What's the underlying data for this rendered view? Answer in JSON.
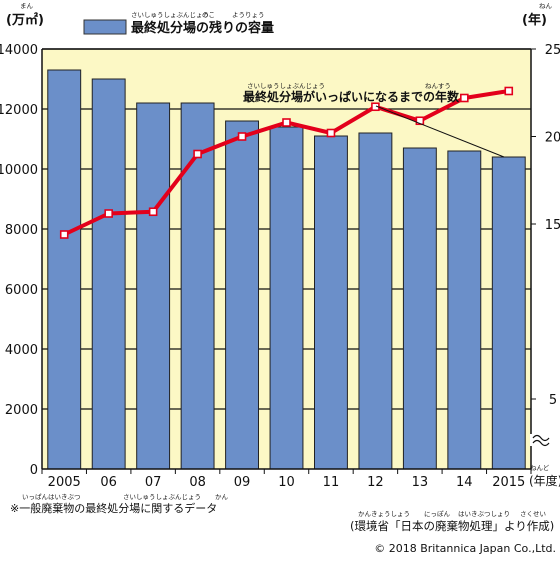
{
  "chart_data": {
    "type": "bar+line",
    "categories": [
      "2005",
      "06",
      "07",
      "08",
      "09",
      "10",
      "11",
      "12",
      "13",
      "14",
      "2015"
    ],
    "x_unit": "(年度)",
    "legend_label": "最終処分場の残りの容量",
    "legend_ruby": [
      "さいしゅうしょぶんじょう",
      "のこ",
      "ようりょう"
    ],
    "left_axis": {
      "unit": "(万㎡)",
      "unit_ruby": "まん",
      "ticks": [
        0,
        2000,
        4000,
        6000,
        8000,
        10000,
        12000,
        14000
      ],
      "ylim": [
        0,
        14000
      ]
    },
    "right_axis": {
      "unit": "(年)",
      "unit_ruby": "ねん",
      "ticks": [
        5,
        15,
        20,
        25
      ],
      "ylim": [
        1,
        25
      ],
      "axis_break": true
    },
    "series": [
      {
        "name": "最終処分場の残りの容量",
        "kind": "bar",
        "axis": "left",
        "color": "#6B8FC9",
        "values": [
          13300,
          13000,
          12200,
          12200,
          11600,
          11400,
          11100,
          11200,
          10700,
          10600,
          10400
        ]
      },
      {
        "name": "最終処分場がいっぱいになるまでの年数",
        "kind": "line",
        "axis": "right",
        "color": "#E3001B",
        "values": [
          14.4,
          15.6,
          15.7,
          19.0,
          20.0,
          20.8,
          20.2,
          21.7,
          20.9,
          22.2,
          22.6
        ]
      }
    ],
    "annotation": {
      "text": "最終処分場がいっぱいになるまでの年数",
      "ruby": [
        "さいしゅうしょぶんじょう",
        "ねんすう"
      ]
    },
    "plot_background": "#FCF8C5",
    "note": "※一般廃棄物の最終処分場に関するデータ",
    "note_ruby": [
      "いっぱんはいきぶつ",
      "さいしゅうしょぶんじょう",
      "かん"
    ],
    "source": "(環境省「日本の廃棄物処理」より作成)",
    "source_ruby": [
      "かんきょうしょう",
      "にっぽん",
      "はいきぶつしょり",
      "さくせい"
    ],
    "copyright": "© 2018 Britannica Japan Co.,Ltd."
  }
}
